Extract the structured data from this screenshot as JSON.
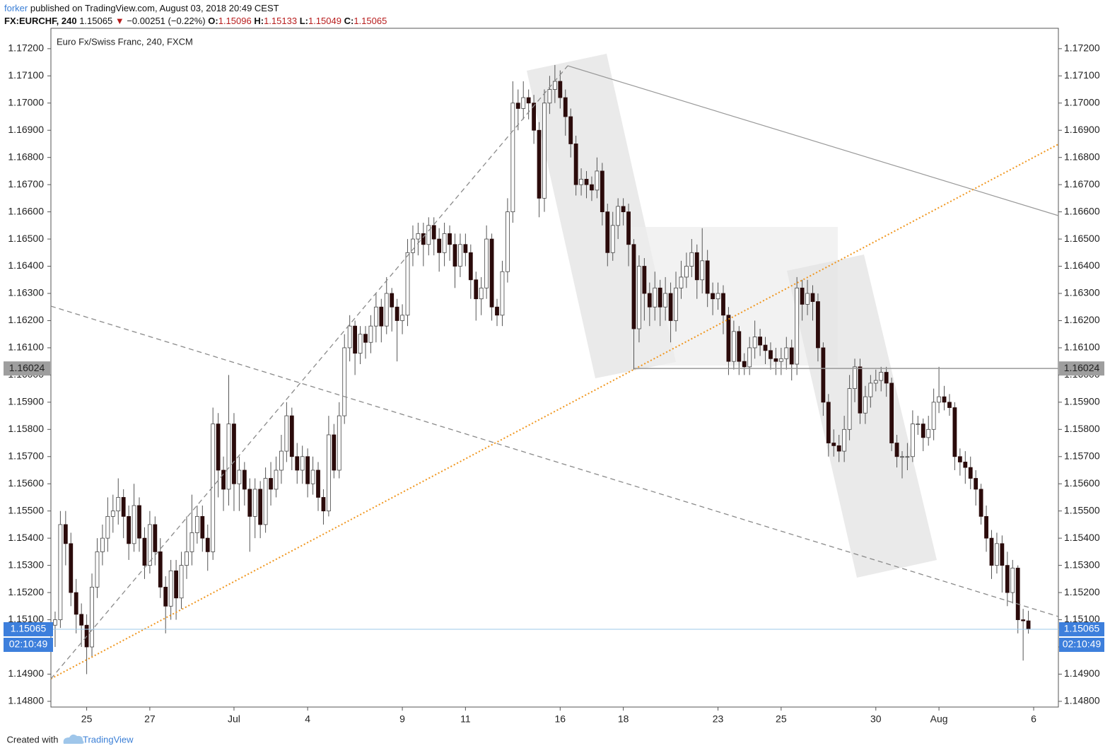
{
  "header": {
    "user": "forker",
    "published": "published on TradingView.com, August 03, 2018 20:49 CEST",
    "symbol": "FX:EURCHF, 240",
    "change": "−0.00251 (−0.22%)",
    "o": "O:",
    "h": "H:",
    "l": "L:",
    "c": "C:",
    "countdown": "02:10:49"
  },
  "footer": {
    "created": "Created with",
    "brand": "TradingView"
  },
  "chart_data": {
    "type": "candlestick",
    "title": "Euro Fx/Swiss Franc, 240, FXCM",
    "xlim": [
      -0.8,
      190.7
    ],
    "ylim": [
      1.14779,
      1.17275
    ],
    "xticks": [
      {
        "value": 6,
        "label": "25"
      },
      {
        "value": 18,
        "label": "27"
      },
      {
        "value": 34,
        "label": "Jul"
      },
      {
        "value": 48,
        "label": "4"
      },
      {
        "value": 66,
        "label": "9"
      },
      {
        "value": 78,
        "label": "11"
      },
      {
        "value": 96,
        "label": "16"
      },
      {
        "value": 108,
        "label": "18"
      },
      {
        "value": 126,
        "label": "23"
      },
      {
        "value": 138,
        "label": "25"
      },
      {
        "value": 156,
        "label": "30"
      },
      {
        "value": 168,
        "label": "Aug"
      },
      {
        "value": 186,
        "label": "6"
      }
    ],
    "yticks": [
      {
        "value": 1.148,
        "label": "1.14800"
      },
      {
        "value": 1.149,
        "label": "1.14900"
      },
      {
        "value": 1.15,
        "label": "1.15000"
      },
      {
        "value": 1.151,
        "label": "1.15100"
      },
      {
        "value": 1.152,
        "label": "1.15200"
      },
      {
        "value": 1.153,
        "label": "1.15300"
      },
      {
        "value": 1.154,
        "label": "1.15400"
      },
      {
        "value": 1.155,
        "label": "1.15500"
      },
      {
        "value": 1.156,
        "label": "1.15600"
      },
      {
        "value": 1.157,
        "label": "1.15700"
      },
      {
        "value": 1.158,
        "label": "1.15800"
      },
      {
        "value": 1.159,
        "label": "1.15900"
      },
      {
        "value": 1.16,
        "label": "1.16000"
      },
      {
        "value": 1.161,
        "label": "1.16100"
      },
      {
        "value": 1.162,
        "label": "1.16200"
      },
      {
        "value": 1.163,
        "label": "1.16300"
      },
      {
        "value": 1.164,
        "label": "1.16400"
      },
      {
        "value": 1.165,
        "label": "1.16500"
      },
      {
        "value": 1.166,
        "label": "1.16600"
      },
      {
        "value": 1.167,
        "label": "1.16700"
      },
      {
        "value": 1.168,
        "label": "1.16800"
      },
      {
        "value": 1.169,
        "label": "1.16900"
      },
      {
        "value": 1.17,
        "label": "1.17000"
      },
      {
        "value": 1.171,
        "label": "1.17100"
      },
      {
        "value": 1.172,
        "label": "1.17200"
      }
    ],
    "hline": 1.16024,
    "up_color": "#ffffff",
    "down_color": "#2b0b0b",
    "wick_color": "#555555",
    "ohlc": [
      [
        1.1508,
        1.1513,
        1.15,
        1.151
      ],
      [
        1.151,
        1.155,
        1.1507,
        1.1545
      ],
      [
        1.1545,
        1.155,
        1.153,
        1.1538
      ],
      [
        1.1538,
        1.1542,
        1.1515,
        1.152
      ],
      [
        1.152,
        1.1525,
        1.1505,
        1.1512
      ],
      [
        1.1512,
        1.1516,
        1.15,
        1.1508
      ],
      [
        1.1508,
        1.1512,
        1.149,
        1.15
      ],
      [
        1.15,
        1.1527,
        1.1496,
        1.1522
      ],
      [
        1.1522,
        1.154,
        1.1518,
        1.1535
      ],
      [
        1.1535,
        1.1545,
        1.153,
        1.154
      ],
      [
        1.154,
        1.1555,
        1.1535,
        1.1548
      ],
      [
        1.1548,
        1.1556,
        1.1542,
        1.155
      ],
      [
        1.155,
        1.1562,
        1.1545,
        1.1555
      ],
      [
        1.1555,
        1.1558,
        1.154,
        1.1548
      ],
      [
        1.1548,
        1.1552,
        1.1532,
        1.1538
      ],
      [
        1.1538,
        1.156,
        1.1535,
        1.1552
      ],
      [
        1.1552,
        1.1555,
        1.1535,
        1.154
      ],
      [
        1.154,
        1.1544,
        1.1525,
        1.153
      ],
      [
        1.153,
        1.155,
        1.1527,
        1.1545
      ],
      [
        1.1545,
        1.1548,
        1.153,
        1.1535
      ],
      [
        1.1535,
        1.154,
        1.1518,
        1.1522
      ],
      [
        1.1522,
        1.1526,
        1.1505,
        1.1515
      ],
      [
        1.1515,
        1.1532,
        1.151,
        1.1528
      ],
      [
        1.1528,
        1.1532,
        1.151,
        1.1518
      ],
      [
        1.1518,
        1.1535,
        1.1514,
        1.153
      ],
      [
        1.153,
        1.1548,
        1.1525,
        1.1535
      ],
      [
        1.1535,
        1.1556,
        1.153,
        1.1542
      ],
      [
        1.1542,
        1.1552,
        1.1538,
        1.1548
      ],
      [
        1.1548,
        1.1552,
        1.1535,
        1.154
      ],
      [
        1.154,
        1.1545,
        1.1528,
        1.1535
      ],
      [
        1.1535,
        1.1588,
        1.1532,
        1.1582
      ],
      [
        1.1582,
        1.1586,
        1.1555,
        1.1565
      ],
      [
        1.1565,
        1.157,
        1.155,
        1.1558
      ],
      [
        1.1558,
        1.16,
        1.1552,
        1.1582
      ],
      [
        1.1582,
        1.1586,
        1.155,
        1.156
      ],
      [
        1.156,
        1.157,
        1.155,
        1.1565
      ],
      [
        1.1565,
        1.1568,
        1.1552,
        1.1558
      ],
      [
        1.1558,
        1.1562,
        1.1535,
        1.1548
      ],
      [
        1.1548,
        1.1562,
        1.154,
        1.1558
      ],
      [
        1.1558,
        1.1561,
        1.154,
        1.1545
      ],
      [
        1.1545,
        1.1566,
        1.1542,
        1.1562
      ],
      [
        1.1562,
        1.1568,
        1.1552,
        1.1558
      ],
      [
        1.1558,
        1.157,
        1.1555,
        1.1565
      ],
      [
        1.1565,
        1.1578,
        1.156,
        1.1572
      ],
      [
        1.1572,
        1.159,
        1.1568,
        1.1585
      ],
      [
        1.1585,
        1.1588,
        1.1565,
        1.157
      ],
      [
        1.157,
        1.1575,
        1.156,
        1.1565
      ],
      [
        1.1565,
        1.1574,
        1.156,
        1.157
      ],
      [
        1.157,
        1.1573,
        1.1555,
        1.156
      ],
      [
        1.156,
        1.157,
        1.1556,
        1.1565
      ],
      [
        1.1565,
        1.1568,
        1.155,
        1.1555
      ],
      [
        1.1555,
        1.1558,
        1.1545,
        1.155
      ],
      [
        1.155,
        1.1585,
        1.1548,
        1.1578
      ],
      [
        1.1578,
        1.1582,
        1.1562,
        1.1565
      ],
      [
        1.1565,
        1.159,
        1.1562,
        1.1585
      ],
      [
        1.1585,
        1.1615,
        1.1582,
        1.161
      ],
      [
        1.161,
        1.1622,
        1.1605,
        1.1618
      ],
      [
        1.1618,
        1.162,
        1.16,
        1.1608
      ],
      [
        1.1608,
        1.1618,
        1.1604,
        1.1615
      ],
      [
        1.1615,
        1.1618,
        1.1606,
        1.1612
      ],
      [
        1.1612,
        1.1622,
        1.1608,
        1.1618
      ],
      [
        1.1618,
        1.163,
        1.1612,
        1.1625
      ],
      [
        1.1625,
        1.1628,
        1.1612,
        1.1618
      ],
      [
        1.1618,
        1.1636,
        1.1615,
        1.163
      ],
      [
        1.163,
        1.1632,
        1.1616,
        1.1625
      ],
      [
        1.1625,
        1.1628,
        1.1605,
        1.162
      ],
      [
        1.162,
        1.1626,
        1.1615,
        1.1622
      ],
      [
        1.1622,
        1.165,
        1.1618,
        1.1645
      ],
      [
        1.1645,
        1.1655,
        1.164,
        1.165
      ],
      [
        1.165,
        1.1656,
        1.1644,
        1.1652
      ],
      [
        1.1652,
        1.1656,
        1.164,
        1.1648
      ],
      [
        1.1648,
        1.1658,
        1.1644,
        1.1655
      ],
      [
        1.1655,
        1.1658,
        1.1644,
        1.165
      ],
      [
        1.165,
        1.1654,
        1.1638,
        1.1645
      ],
      [
        1.1645,
        1.1656,
        1.164,
        1.1652
      ],
      [
        1.1652,
        1.1655,
        1.1642,
        1.1648
      ],
      [
        1.1648,
        1.1652,
        1.1632,
        1.164
      ],
      [
        1.164,
        1.1652,
        1.1636,
        1.1648
      ],
      [
        1.1648,
        1.1652,
        1.164,
        1.1645
      ],
      [
        1.1645,
        1.1648,
        1.1628,
        1.1635
      ],
      [
        1.1635,
        1.1638,
        1.162,
        1.1628
      ],
      [
        1.1628,
        1.1636,
        1.1622,
        1.1632
      ],
      [
        1.1632,
        1.1655,
        1.1628,
        1.165
      ],
      [
        1.165,
        1.1652,
        1.162,
        1.1625
      ],
      [
        1.1625,
        1.1628,
        1.1618,
        1.1622
      ],
      [
        1.1622,
        1.1642,
        1.1618,
        1.1638
      ],
      [
        1.1638,
        1.1665,
        1.1634,
        1.166
      ],
      [
        1.166,
        1.1708,
        1.1656,
        1.17
      ],
      [
        1.17,
        1.1705,
        1.169,
        1.1698
      ],
      [
        1.1698,
        1.1708,
        1.1694,
        1.1702
      ],
      [
        1.1702,
        1.1705,
        1.1694,
        1.17
      ],
      [
        1.17,
        1.1703,
        1.1685,
        1.169
      ],
      [
        1.169,
        1.1693,
        1.1658,
        1.1665
      ],
      [
        1.1665,
        1.1705,
        1.166,
        1.17
      ],
      [
        1.17,
        1.171,
        1.1696,
        1.1705
      ],
      [
        1.1705,
        1.1714,
        1.17,
        1.1708
      ],
      [
        1.1708,
        1.1712,
        1.1698,
        1.1702
      ],
      [
        1.1702,
        1.1705,
        1.1688,
        1.1695
      ],
      [
        1.1695,
        1.1698,
        1.168,
        1.1685
      ],
      [
        1.1685,
        1.1688,
        1.1666,
        1.167
      ],
      [
        1.167,
        1.1676,
        1.1666,
        1.1672
      ],
      [
        1.1672,
        1.1675,
        1.1665,
        1.167
      ],
      [
        1.167,
        1.1673,
        1.1664,
        1.1668
      ],
      [
        1.1668,
        1.168,
        1.1665,
        1.1675
      ],
      [
        1.1675,
        1.1678,
        1.1655,
        1.166
      ],
      [
        1.166,
        1.1663,
        1.164,
        1.1645
      ],
      [
        1.1645,
        1.166,
        1.1642,
        1.1655
      ],
      [
        1.1655,
        1.1665,
        1.165,
        1.1662
      ],
      [
        1.1662,
        1.1665,
        1.1655,
        1.166
      ],
      [
        1.166,
        1.1663,
        1.164,
        1.1648
      ],
      [
        1.1648,
        1.165,
        1.1602,
        1.1617
      ],
      [
        1.1617,
        1.1644,
        1.1612,
        1.164
      ],
      [
        1.164,
        1.1643,
        1.162,
        1.163
      ],
      [
        1.163,
        1.1634,
        1.1618,
        1.1625
      ],
      [
        1.1625,
        1.1638,
        1.162,
        1.1632
      ],
      [
        1.1632,
        1.1635,
        1.1618,
        1.1625
      ],
      [
        1.1625,
        1.1636,
        1.162,
        1.163
      ],
      [
        1.163,
        1.1634,
        1.1612,
        1.162
      ],
      [
        1.162,
        1.1638,
        1.1616,
        1.1632
      ],
      [
        1.1632,
        1.1642,
        1.1628,
        1.1636
      ],
      [
        1.1636,
        1.1645,
        1.1632,
        1.164
      ],
      [
        1.164,
        1.165,
        1.1636,
        1.1645
      ],
      [
        1.1645,
        1.1648,
        1.1628,
        1.1635
      ],
      [
        1.1635,
        1.1654,
        1.163,
        1.1642
      ],
      [
        1.1642,
        1.1646,
        1.1625,
        1.163
      ],
      [
        1.163,
        1.1634,
        1.1622,
        1.1628
      ],
      [
        1.1628,
        1.1634,
        1.1624,
        1.163
      ],
      [
        1.163,
        1.1633,
        1.1615,
        1.1622
      ],
      [
        1.1622,
        1.1625,
        1.16,
        1.1605
      ],
      [
        1.1605,
        1.162,
        1.1602,
        1.1616
      ],
      [
        1.1616,
        1.1618,
        1.16,
        1.1605
      ],
      [
        1.1605,
        1.1608,
        1.16,
        1.1603
      ],
      [
        1.1603,
        1.1614,
        1.16,
        1.161
      ],
      [
        1.161,
        1.162,
        1.1606,
        1.1614
      ],
      [
        1.1614,
        1.1617,
        1.1607,
        1.1611
      ],
      [
        1.1611,
        1.1614,
        1.1604,
        1.1609
      ],
      [
        1.1609,
        1.1612,
        1.1602,
        1.1606
      ],
      [
        1.1606,
        1.161,
        1.16,
        1.1605
      ],
      [
        1.1605,
        1.161,
        1.16,
        1.1606
      ],
      [
        1.1606,
        1.1614,
        1.1602,
        1.161
      ],
      [
        1.161,
        1.1613,
        1.1598,
        1.1604
      ],
      [
        1.1604,
        1.1636,
        1.16,
        1.1632
      ],
      [
        1.1632,
        1.1635,
        1.162,
        1.1626
      ],
      [
        1.1626,
        1.1635,
        1.1622,
        1.163
      ],
      [
        1.163,
        1.1633,
        1.162,
        1.1627
      ],
      [
        1.1627,
        1.163,
        1.1605,
        1.161
      ],
      [
        1.161,
        1.1612,
        1.1585,
        1.159
      ],
      [
        1.159,
        1.1593,
        1.157,
        1.1575
      ],
      [
        1.1575,
        1.158,
        1.157,
        1.1574
      ],
      [
        1.1574,
        1.1578,
        1.1568,
        1.1572
      ],
      [
        1.1572,
        1.1585,
        1.1568,
        1.158
      ],
      [
        1.158,
        1.16,
        1.1576,
        1.1595
      ],
      [
        1.1595,
        1.1606,
        1.159,
        1.1603
      ],
      [
        1.1603,
        1.1606,
        1.1582,
        1.1586
      ],
      [
        1.1586,
        1.1596,
        1.1582,
        1.1592
      ],
      [
        1.1592,
        1.16,
        1.1588,
        1.1597
      ],
      [
        1.1597,
        1.1602,
        1.1594,
        1.1598
      ],
      [
        1.1598,
        1.1603,
        1.1594,
        1.1601
      ],
      [
        1.1601,
        1.1603,
        1.1592,
        1.1597
      ],
      [
        1.1597,
        1.1599,
        1.1572,
        1.1575
      ],
      [
        1.1575,
        1.1578,
        1.1566,
        1.157
      ],
      [
        1.157,
        1.1572,
        1.1562,
        1.157
      ],
      [
        1.157,
        1.1575,
        1.1565,
        1.157
      ],
      [
        1.157,
        1.1587,
        1.1568,
        1.1582
      ],
      [
        1.1582,
        1.1585,
        1.1578,
        1.1582
      ],
      [
        1.1582,
        1.1584,
        1.1572,
        1.1577
      ],
      [
        1.1577,
        1.1585,
        1.1574,
        1.158
      ],
      [
        1.158,
        1.1595,
        1.1576,
        1.159
      ],
      [
        1.159,
        1.1603,
        1.1586,
        1.1592
      ],
      [
        1.1592,
        1.1596,
        1.1587,
        1.159
      ],
      [
        1.159,
        1.1593,
        1.1585,
        1.1588
      ],
      [
        1.1588,
        1.159,
        1.1565,
        1.157
      ],
      [
        1.157,
        1.1573,
        1.1563,
        1.1568
      ],
      [
        1.1568,
        1.1572,
        1.156,
        1.1566
      ],
      [
        1.1566,
        1.157,
        1.1558,
        1.1562
      ],
      [
        1.1562,
        1.1565,
        1.1552,
        1.1558
      ],
      [
        1.1558,
        1.156,
        1.1545,
        1.1548
      ],
      [
        1.1548,
        1.1552,
        1.1535,
        1.154
      ],
      [
        1.154,
        1.1543,
        1.1525,
        1.153
      ],
      [
        1.153,
        1.1542,
        1.1527,
        1.1538
      ],
      [
        1.1538,
        1.1541,
        1.152,
        1.153
      ],
      [
        1.153,
        1.1535,
        1.1515,
        1.152
      ],
      [
        1.152,
        1.1532,
        1.1516,
        1.1529
      ],
      [
        1.1529,
        1.153,
        1.1505,
        1.151
      ],
      [
        1.151,
        1.1514,
        1.1495,
        1.15096
      ],
      [
        1.15096,
        1.15133,
        1.15049,
        1.15065
      ]
    ]
  }
}
